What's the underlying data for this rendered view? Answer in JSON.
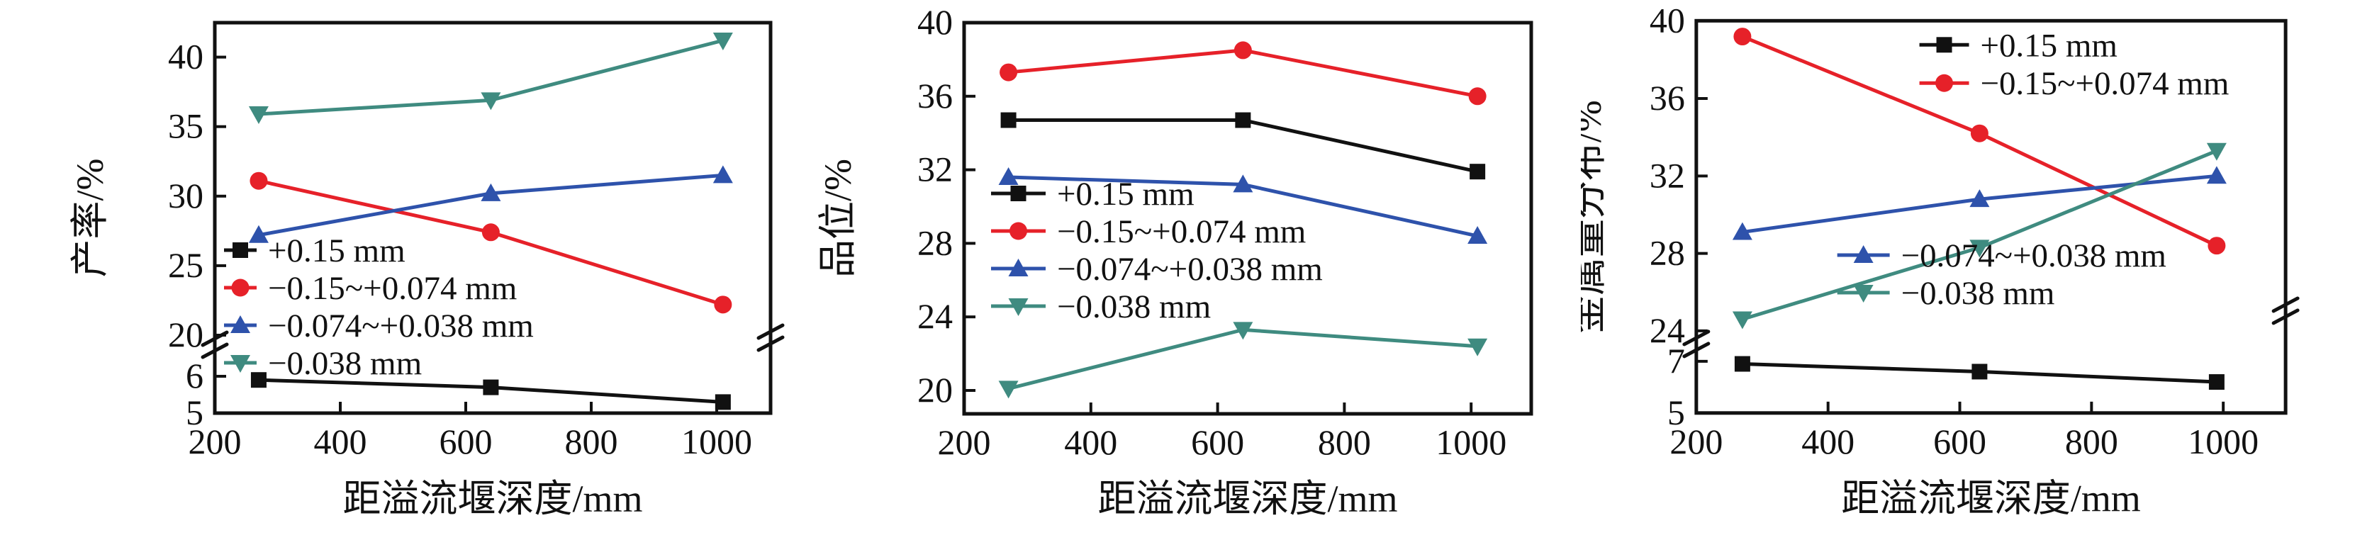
{
  "figure": {
    "background": "#ffffff",
    "panel_count": 3,
    "shared_x_axis_label": "距溢流堰深度/mm"
  },
  "chart_data": [
    {
      "type": "line",
      "title": "",
      "ylabel": "产率/%",
      "xlabel": "距溢流堰深度/mm",
      "x": [
        270,
        640,
        1010
      ],
      "x_ticks": [
        200,
        400,
        600,
        800,
        1000
      ],
      "y_ticks_top": [
        40,
        35,
        30,
        25,
        20
      ],
      "y_ticks_bottom": [
        6,
        5
      ],
      "axis_break": true,
      "ylim_top": [
        20,
        42.5
      ],
      "ylim_bottom": [
        5,
        6.8
      ],
      "xlim": [
        200,
        1090
      ],
      "grid": false,
      "legend_position": "inside-middle-left",
      "series": [
        {
          "name": "+0.15 mm",
          "color": "#111111",
          "marker": "square",
          "values": [
            5.9,
            5.7,
            5.3
          ]
        },
        {
          "name": "−0.15~+0.074 mm",
          "color": "#e62129",
          "marker": "circle",
          "values": [
            31.1,
            27.4,
            22.2
          ]
        },
        {
          "name": "−0.074~+0.038 mm",
          "color": "#2e52ab",
          "marker": "triangle-up",
          "values": [
            27.2,
            30.2,
            31.5
          ]
        },
        {
          "name": "−0.038 mm",
          "color": "#3f8b80",
          "marker": "triangle-down",
          "values": [
            35.9,
            36.9,
            41.2
          ]
        }
      ]
    },
    {
      "type": "line",
      "title": "",
      "ylabel": "品位/%",
      "xlabel": "距溢流堰深度/mm",
      "x": [
        270,
        640,
        1010
      ],
      "x_ticks": [
        200,
        400,
        600,
        800,
        1000
      ],
      "y_ticks_top": [
        40,
        36,
        32,
        28,
        24,
        20
      ],
      "y_ticks_bottom": [],
      "axis_break": false,
      "ylim_top": [
        18.7,
        40
      ],
      "ylim_bottom": null,
      "xlim": [
        200,
        1090
      ],
      "grid": false,
      "legend_position": "inside-middle-left",
      "series": [
        {
          "name": "+0.15 mm",
          "color": "#111111",
          "marker": "square",
          "values": [
            34.7,
            34.7,
            31.9
          ]
        },
        {
          "name": "−0.15~+0.074 mm",
          "color": "#e62129",
          "marker": "circle",
          "values": [
            37.3,
            38.5,
            36.0
          ]
        },
        {
          "name": "−0.074~+0.038 mm",
          "color": "#2e52ab",
          "marker": "triangle-up",
          "values": [
            31.6,
            31.2,
            28.4
          ]
        },
        {
          "name": "−0.038 mm",
          "color": "#3f8b80",
          "marker": "triangle-down",
          "values": [
            20.1,
            23.3,
            22.4
          ]
        }
      ]
    },
    {
      "type": "line",
      "title": "",
      "ylabel": "金属量分布/%",
      "xlabel": "距溢流堰深度/mm",
      "x": [
        270,
        630,
        990
      ],
      "x_ticks": [
        200,
        400,
        600,
        800,
        1000
      ],
      "y_ticks_top": [
        40,
        36,
        32,
        28,
        24
      ],
      "y_ticks_bottom": [
        7,
        5
      ],
      "axis_break": true,
      "ylim_top": [
        24,
        40
      ],
      "ylim_bottom": [
        5,
        7.6
      ],
      "xlim": [
        200,
        1090
      ],
      "grid": false,
      "legend_position": "split-top-right-and-middle",
      "series": [
        {
          "name": "+0.15 mm",
          "color": "#111111",
          "marker": "square",
          "values": [
            6.9,
            6.6,
            6.2
          ]
        },
        {
          "name": "−0.15~+0.074 mm",
          "color": "#e62129",
          "marker": "circle",
          "values": [
            39.2,
            34.2,
            28.4
          ]
        },
        {
          "name": "−0.074~+0.038 mm",
          "color": "#2e52ab",
          "marker": "triangle-up",
          "values": [
            29.1,
            30.8,
            32.0
          ]
        },
        {
          "name": "−0.038 mm",
          "color": "#3f8b80",
          "marker": "triangle-down",
          "values": [
            24.6,
            28.3,
            33.3
          ]
        }
      ]
    }
  ]
}
